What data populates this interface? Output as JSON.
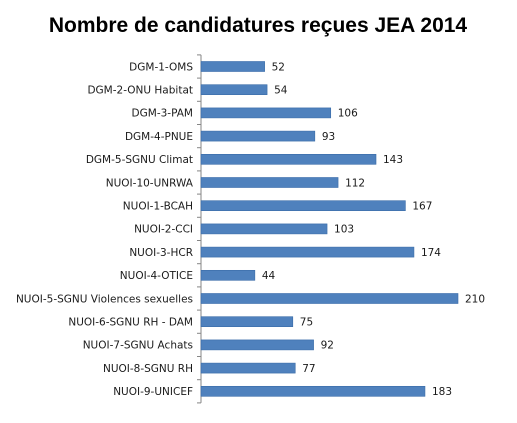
{
  "chart_data": {
    "type": "bar",
    "orientation": "horizontal",
    "title": "Nombre de candidatures reçues JEA 2014",
    "categories": [
      "DGM-1-OMS",
      "DGM-2-ONU Habitat",
      "DGM-3-PAM",
      "DGM-4-PNUE",
      "DGM-5-SGNU Climat",
      "NUOI-10-UNRWA",
      "NUOI-1-BCAH",
      "NUOI-2-CCI",
      "NUOI-3-HCR",
      "NUOI-4-OTICE",
      "NUOI-5-SGNU Violences sexuelles",
      "NUOI-6-SGNU RH - DAM",
      "NUOI-7-SGNU Achats",
      "NUOI-8-SGNU RH",
      "NUOI-9-UNICEF"
    ],
    "values": [
      52,
      54,
      106,
      93,
      143,
      112,
      167,
      103,
      174,
      44,
      210,
      75,
      92,
      77,
      183
    ],
    "xlim": [
      0,
      210
    ],
    "data_labels": true,
    "legend": "none",
    "grid": false,
    "bar_color": "#4f81bd",
    "bar_edge_color": "#3a6ca8"
  }
}
